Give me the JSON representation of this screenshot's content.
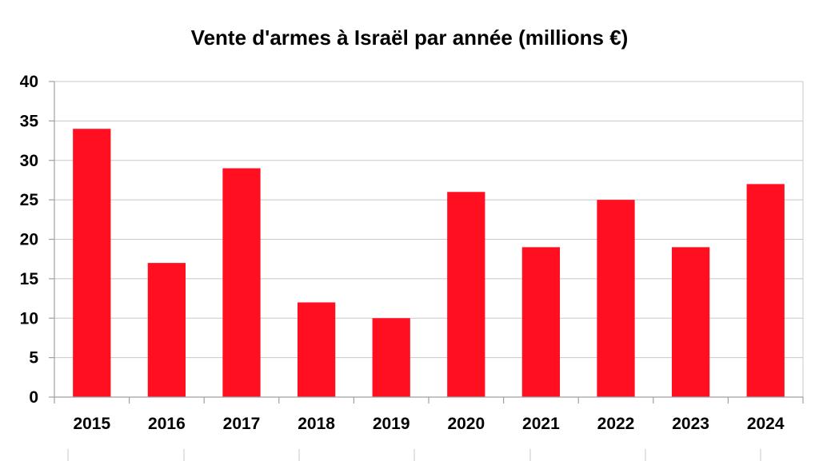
{
  "chart_data": {
    "type": "bar",
    "title": "Vente d'armes à Israël par année (millions €)",
    "categories": [
      "2015",
      "2016",
      "2017",
      "2018",
      "2019",
      "2020",
      "2021",
      "2022",
      "2023",
      "2024"
    ],
    "series": [
      {
        "name": "Vente d'armes",
        "values": [
          34,
          17,
          29,
          12,
          10,
          26,
          19,
          25,
          19,
          27
        ]
      }
    ],
    "xlabel": "",
    "ylabel": "",
    "ylim": [
      0,
      40
    ],
    "yticks": [
      "0",
      "5",
      "10",
      "15",
      "20",
      "25",
      "30",
      "35",
      "40"
    ],
    "grid": true,
    "legend": "none"
  },
  "colors": {
    "bar": "#ff0f1f",
    "grid": "#c8c8c8",
    "axis": "#a0a0a0"
  }
}
